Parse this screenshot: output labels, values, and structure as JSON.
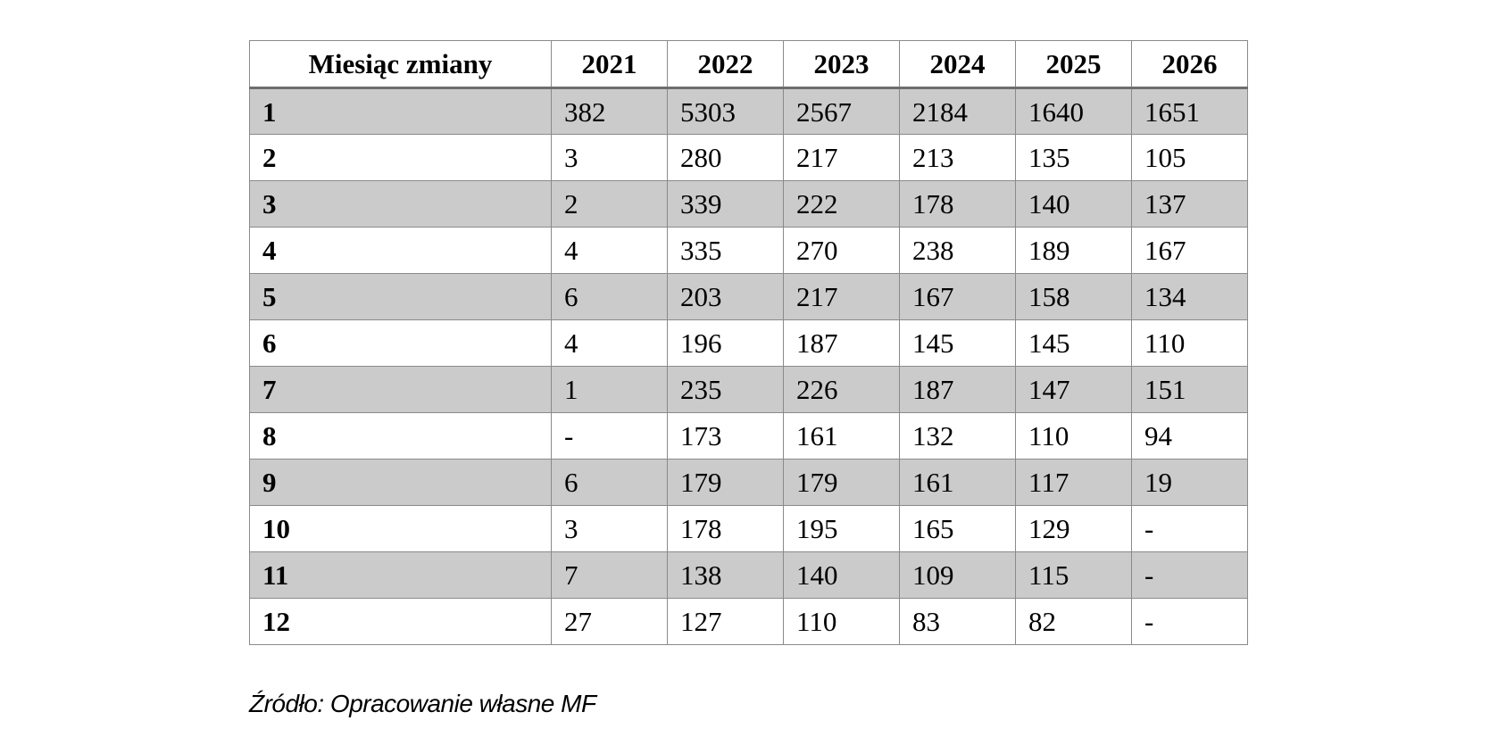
{
  "table": {
    "header": {
      "first": "Miesiąc zmiany",
      "years": [
        "2021",
        "2022",
        "2023",
        "2024",
        "2025",
        "2026"
      ]
    },
    "rows": [
      {
        "month": "1",
        "values": [
          "382",
          "5303",
          "2567",
          "2184",
          "1640",
          "1651"
        ]
      },
      {
        "month": "2",
        "values": [
          "3",
          "280",
          "217",
          "213",
          "135",
          "105"
        ]
      },
      {
        "month": "3",
        "values": [
          "2",
          "339",
          "222",
          "178",
          "140",
          "137"
        ]
      },
      {
        "month": "4",
        "values": [
          "4",
          "335",
          "270",
          "238",
          "189",
          "167"
        ]
      },
      {
        "month": "5",
        "values": [
          "6",
          "203",
          "217",
          "167",
          "158",
          "134"
        ]
      },
      {
        "month": "6",
        "values": [
          "4",
          "196",
          "187",
          "145",
          "145",
          "110"
        ]
      },
      {
        "month": "7",
        "values": [
          "1",
          "235",
          "226",
          "187",
          "147",
          "151"
        ]
      },
      {
        "month": "8",
        "values": [
          "-",
          "173",
          "161",
          "132",
          "110",
          "94"
        ]
      },
      {
        "month": "9",
        "values": [
          "6",
          "179",
          "179",
          "161",
          "117",
          "19"
        ]
      },
      {
        "month": "10",
        "values": [
          "3",
          "178",
          "195",
          "165",
          "129",
          "-"
        ]
      },
      {
        "month": "11",
        "values": [
          "7",
          "138",
          "140",
          "109",
          "115",
          "-"
        ]
      },
      {
        "month": "12",
        "values": [
          "27",
          "127",
          "110",
          "83",
          "82",
          "-"
        ]
      }
    ]
  },
  "source": "Źródło: Opracowanie własne MF",
  "colors": {
    "shaded_row": "#cbcbcb",
    "border": "#8a8a8a"
  }
}
